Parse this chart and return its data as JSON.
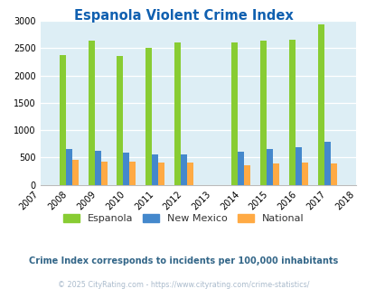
{
  "title": "Espanola Violent Crime Index",
  "title_color": "#1060b0",
  "years": [
    2007,
    2008,
    2009,
    2010,
    2011,
    2012,
    2013,
    2014,
    2015,
    2016,
    2017,
    2018
  ],
  "data_years": [
    2008,
    2009,
    2010,
    2011,
    2012,
    2014,
    2015,
    2016,
    2017
  ],
  "espanola": [
    2370,
    2630,
    2360,
    2500,
    2610,
    2610,
    2640,
    2660,
    2940
  ],
  "new_mexico": [
    660,
    625,
    590,
    560,
    560,
    610,
    660,
    690,
    790
  ],
  "national": [
    455,
    430,
    415,
    400,
    400,
    365,
    390,
    410,
    390
  ],
  "espanola_color": "#88cc33",
  "new_mexico_color": "#4488cc",
  "national_color": "#ffaa44",
  "bg_color": "#ddeef5",
  "ylim": [
    0,
    3000
  ],
  "yticks": [
    0,
    500,
    1000,
    1500,
    2000,
    2500,
    3000
  ],
  "subtitle": "Crime Index corresponds to incidents per 100,000 inhabitants",
  "subtitle_color": "#336688",
  "footer": "© 2025 CityRating.com - https://www.cityrating.com/crime-statistics/",
  "footer_color": "#aabbcc",
  "bar_width": 0.22,
  "legend_labels": [
    "Espanola",
    "New Mexico",
    "National"
  ]
}
